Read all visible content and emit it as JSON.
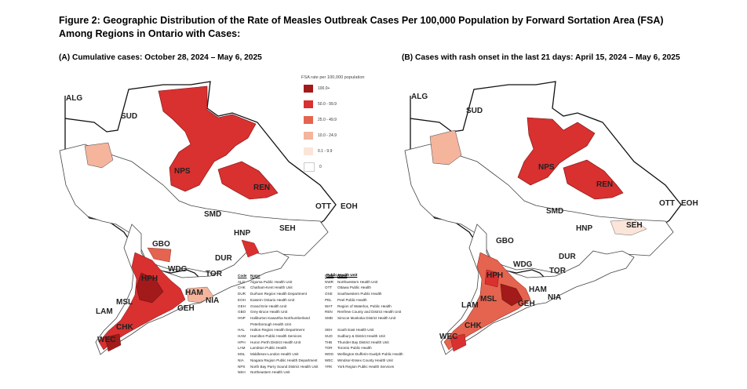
{
  "figure": {
    "title": "Figure 2: Geographic Distribution of the Rate of Measles Outbreak Cases Per 100,000 Population by Forward Sortation Area (FSA) Among Regions in Ontario with Cases:"
  },
  "panel_a": {
    "title": "(A) Cumulative cases: October 28, 2024 – May 6, 2025"
  },
  "panel_b": {
    "title": "(B) Cases with rash onset in the last 21 days: April 15, 2024 – May 6, 2025"
  },
  "legend": {
    "title": "FSA rate per 100,000 population",
    "items": [
      {
        "label": "100.0+",
        "color": "#a31a1a"
      },
      {
        "label": "50.0 - 99.9",
        "color": "#d93030"
      },
      {
        "label": "25.0 - 49.9",
        "color": "#e5644f"
      },
      {
        "label": "10.0 - 24.9",
        "color": "#f5b49c"
      },
      {
        "label": "0.1 - 9.9",
        "color": "#fbe4d8"
      },
      {
        "label": "0",
        "color": "#ffffff"
      }
    ]
  },
  "region_labels": [
    "ALG",
    "SUD",
    "NPS",
    "REN",
    "OTT",
    "EOH",
    "SMD",
    "HNP",
    "SEH",
    "GBO",
    "DUR",
    "WDG",
    "TOR",
    "HPH",
    "HAM",
    "NIA",
    "MSL",
    "GEH",
    "LAM",
    "CHK",
    "WEC"
  ],
  "codes_header": {
    "code": "Code",
    "name": "Name",
    "public_health_unit": "Public Health Unit"
  },
  "codes_left": [
    {
      "code": "ALG",
      "name": "Algoma Public Health Unit"
    },
    {
      "code": "CHK",
      "name": "Chatham-Kent Health Unit"
    },
    {
      "code": "DUR",
      "name": "Durham Region Health Department"
    },
    {
      "code": "EOH",
      "name": "Eastern Ontario Health Unit"
    },
    {
      "code": "GEH",
      "name": "Grand Erie Health Unit"
    },
    {
      "code": "GBO",
      "name": "Grey Bruce Health Unit"
    },
    {
      "code": "HNP",
      "name": "Haliburton Kawartha Northumberland"
    },
    {
      "code": "",
      "name": "Peterborough Health Unit"
    },
    {
      "code": "HAL",
      "name": "Halton Region Health Department"
    },
    {
      "code": "HAM",
      "name": "Hamilton Public Health Services"
    },
    {
      "code": "HPH",
      "name": "Huron Perth District Health Unit"
    },
    {
      "code": "LAM",
      "name": "Lambton Public Health"
    },
    {
      "code": "MSL",
      "name": "Middlesex-London Health Unit"
    },
    {
      "code": "NIA",
      "name": "Niagara Region Public Health Department"
    },
    {
      "code": "NPS",
      "name": "North Bay Parry Sound District Health Unit"
    },
    {
      "code": "NEH",
      "name": "Northeastern Health Unit"
    }
  ],
  "codes_right": [
    {
      "code": "NWR",
      "name": "Northwestern Health Unit"
    },
    {
      "code": "OTT",
      "name": "Ottawa Public Health"
    },
    {
      "code": "OXE",
      "name": "Southwestern Public Health"
    },
    {
      "code": "PEL",
      "name": "Peel Public Health"
    },
    {
      "code": "WAT",
      "name": "Region of Waterloo, Public Health"
    },
    {
      "code": "REN",
      "name": "Renfrew County and District Health Unit"
    },
    {
      "code": "SMD",
      "name": "Simcoe Muskoka District Health Unit"
    },
    {
      "code": "",
      "name": ""
    },
    {
      "code": "SEH",
      "name": "South East Health Unit"
    },
    {
      "code": "SUD",
      "name": "Sudbury & District Health Unit"
    },
    {
      "code": "THB",
      "name": "Thunder Bay District Health Unit"
    },
    {
      "code": "TOR",
      "name": "Toronto Public Health"
    },
    {
      "code": "WDG",
      "name": "Wellington-Dufferin-Guelph Public Health"
    },
    {
      "code": "WEC",
      "name": "Windsor-Essex County Health Unit"
    },
    {
      "code": "YRK",
      "name": "York Region Public Health Services"
    }
  ]
}
